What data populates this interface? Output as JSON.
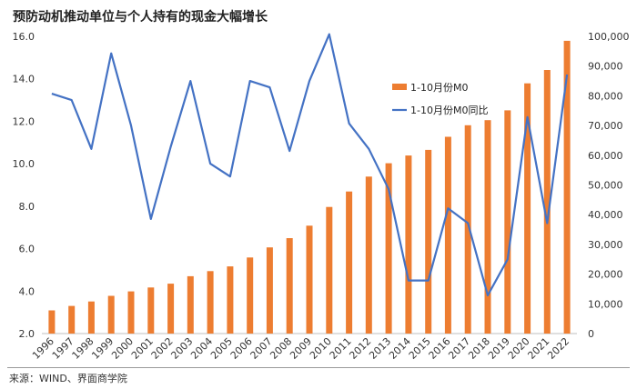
{
  "chart_data": {
    "type": "bar+line",
    "title": "预防动机推动单位与个人持有的现金大幅增长",
    "categories": [
      "1996",
      "1997",
      "1998",
      "1999",
      "2000",
      "2001",
      "2002",
      "2003",
      "2004",
      "2005",
      "2006",
      "2007",
      "2008",
      "2009",
      "2010",
      "2011",
      "2012",
      "2013",
      "2014",
      "2015",
      "2016",
      "2017",
      "2018",
      "2019",
      "2020",
      "2021",
      "2022"
    ],
    "series": [
      {
        "name": "1-10月份M0",
        "type": "bar",
        "axis": "right",
        "color": "#ED7D31",
        "values": [
          7800,
          9300,
          10800,
          12700,
          14200,
          15500,
          16800,
          19300,
          21000,
          22600,
          25600,
          29000,
          32100,
          36300,
          42600,
          47800,
          52800,
          57300,
          59900,
          61800,
          66200,
          70100,
          71800,
          75100,
          84200,
          88700,
          98500
        ]
      },
      {
        "name": "1-10月份M0同比",
        "type": "line",
        "axis": "left",
        "color": "#4472C4",
        "values": [
          13.3,
          13.0,
          10.7,
          15.2,
          11.8,
          7.4,
          10.8,
          13.9,
          10.0,
          9.4,
          13.9,
          13.6,
          10.6,
          13.9,
          16.1,
          11.9,
          10.7,
          8.8,
          4.5,
          4.5,
          7.9,
          7.2,
          3.8,
          5.5,
          12.2,
          7.2,
          14.2
        ]
      }
    ],
    "left_axis": {
      "min": 2.0,
      "max": 16.0,
      "step": 2.0,
      "tick_labels": [
        "2.0",
        "4.0",
        "6.0",
        "8.0",
        "10.0",
        "12.0",
        "14.0",
        "16.0"
      ]
    },
    "right_axis": {
      "min": 0,
      "max": 100000,
      "step": 10000,
      "tick_labels": [
        "0",
        "10,000",
        "20,000",
        "30,000",
        "40,000",
        "50,000",
        "60,000",
        "70,000",
        "80,000",
        "90,000",
        "100,000"
      ]
    },
    "grid": false,
    "legend_position": "top-right-inside",
    "source": "来源：WIND、界面商学院"
  }
}
